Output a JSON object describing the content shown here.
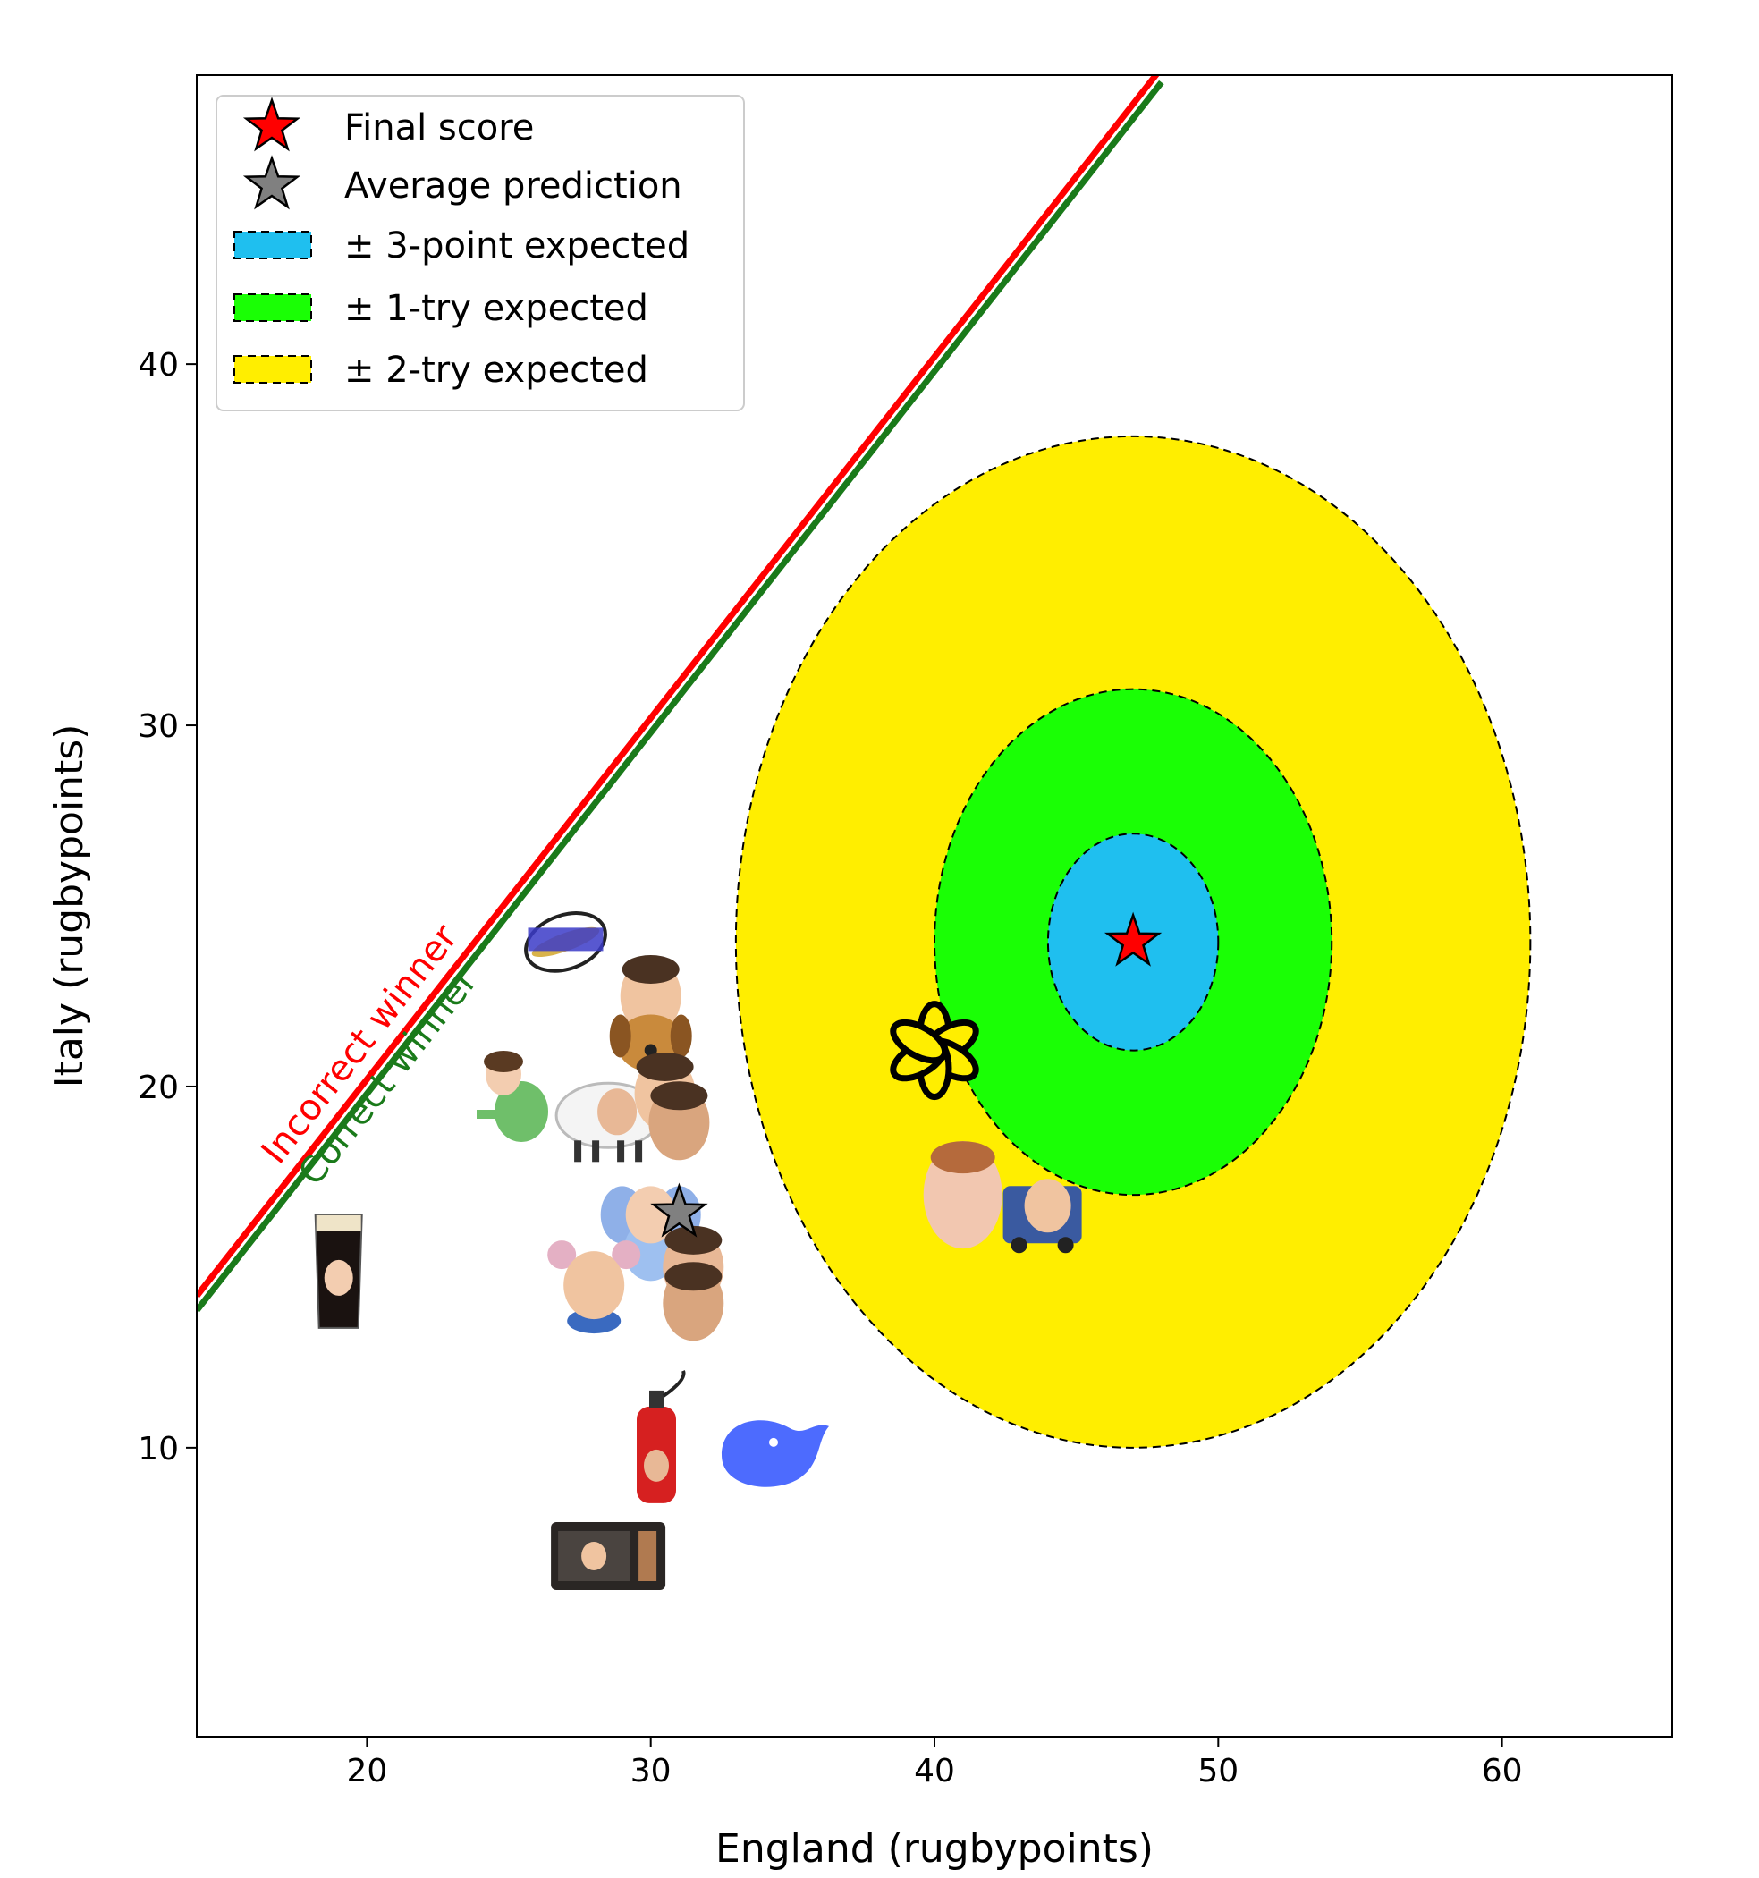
{
  "chart_data": {
    "type": "scatter",
    "xlabel": "England (rugbypoints)",
    "ylabel": "Italy (rugbypoints)",
    "xlim": [
      14,
      66
    ],
    "ylim": [
      2,
      48
    ],
    "xticks": [
      20,
      30,
      40,
      50,
      60
    ],
    "yticks": [
      10,
      20,
      30,
      40
    ],
    "grid": false,
    "legend": {
      "position": "top-left",
      "entries": [
        {
          "label": "Final score",
          "marker": "star",
          "color": "#ff0000"
        },
        {
          "label": "Average prediction",
          "marker": "star",
          "color": "#808080"
        },
        {
          "label": "± 3-point expected",
          "marker": "patch",
          "color": "#1fbfef"
        },
        {
          "label": "± 1-try expected",
          "marker": "patch",
          "color": "#1aff05"
        },
        {
          "label": "± 2-try expected",
          "marker": "patch",
          "color": "#ffee00"
        }
      ]
    },
    "final_score": {
      "x": 47,
      "y": 24
    },
    "average_prediction": {
      "x": 31,
      "y": 16.5
    },
    "regions": [
      {
        "label": "± 2-try expected",
        "rx": 14,
        "ry": 14,
        "color": "#ffee00"
      },
      {
        "label": "± 1-try expected",
        "rx": 7,
        "ry": 7,
        "color": "#1aff05"
      },
      {
        "label": "± 3-point expected",
        "rx": 3,
        "ry": 3,
        "color": "#1fbfef"
      }
    ],
    "lines": [
      {
        "label": "Incorrect winner",
        "color": "#ff0000",
        "points": [
          [
            14,
            14.2
          ],
          [
            48,
            48.2
          ]
        ]
      },
      {
        "label": "Correct winner",
        "color": "#1a7a1a",
        "points": [
          [
            14,
            13.8
          ],
          [
            48,
            47.8
          ]
        ]
      }
    ],
    "predictions": [
      {
        "icon": "rugby-ball-2024-icon",
        "x": 27,
        "y": 24
      },
      {
        "icon": "face-icon",
        "x": 30,
        "y": 22.5
      },
      {
        "icon": "dog-face-icon",
        "x": 30,
        "y": 21.2
      },
      {
        "icon": "dinosaur-face-icon",
        "x": 25,
        "y": 19.8
      },
      {
        "icon": "sheep-face-icon",
        "x": 28.5,
        "y": 19.2
      },
      {
        "icon": "face-icon",
        "x": 30.5,
        "y": 19.8
      },
      {
        "icon": "face-icon",
        "x": 31,
        "y": 19
      },
      {
        "icon": "elephant-face-icon",
        "x": 30,
        "y": 16.2
      },
      {
        "icon": "face-icon",
        "x": 31.5,
        "y": 15
      },
      {
        "icon": "mouse-face-icon",
        "x": 28,
        "y": 14.5
      },
      {
        "icon": "face-icon",
        "x": 31.5,
        "y": 14
      },
      {
        "icon": "guinness-pint-icon",
        "x": 19,
        "y": 15
      },
      {
        "icon": "fire-extinguisher-icon",
        "x": 30.2,
        "y": 10
      },
      {
        "icon": "microwave-icon",
        "x": 28.5,
        "y": 7
      },
      {
        "icon": "deepseek-whale-icon",
        "x": 34.2,
        "y": 10
      },
      {
        "icon": "openai-logo-icon",
        "x": 40,
        "y": 21
      },
      {
        "icon": "baby-face-icon",
        "x": 41,
        "y": 17
      },
      {
        "icon": "truck-face-icon",
        "x": 43.8,
        "y": 16.5
      }
    ]
  }
}
